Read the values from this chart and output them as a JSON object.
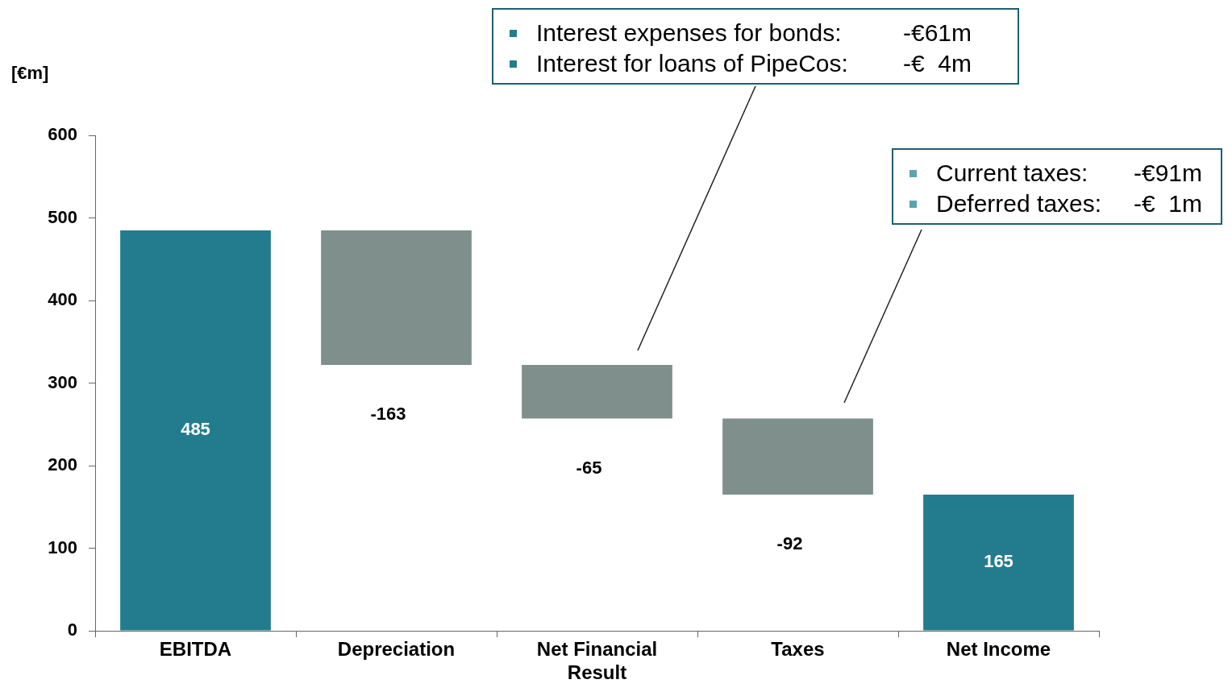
{
  "chart_data": {
    "type": "bar",
    "ylabel": "[€m]",
    "categories": [
      "EBITDA",
      "Depreciation",
      "Net Financial Result",
      "Taxes",
      "Net Income"
    ],
    "values": [
      485,
      -163,
      -65,
      -92,
      165
    ],
    "base": [
      0,
      485,
      322,
      257,
      0
    ],
    "colors": [
      "#237c8e",
      "#7f8f8c",
      "#7f8f8c",
      "#7f8f8c",
      "#237c8e"
    ],
    "ylim": [
      0,
      600
    ],
    "yticks": [
      0,
      100,
      200,
      300,
      400,
      500,
      600
    ],
    "grid": false,
    "legend": false,
    "data_labels": true,
    "annotations": [
      "Interest expenses for bonds:",
      "-€61m",
      "Interest for loans of PipeCos:",
      "-€  4m",
      "Current taxes:",
      "-€91m",
      "Deferred taxes:",
      "-€  1m"
    ]
  }
}
